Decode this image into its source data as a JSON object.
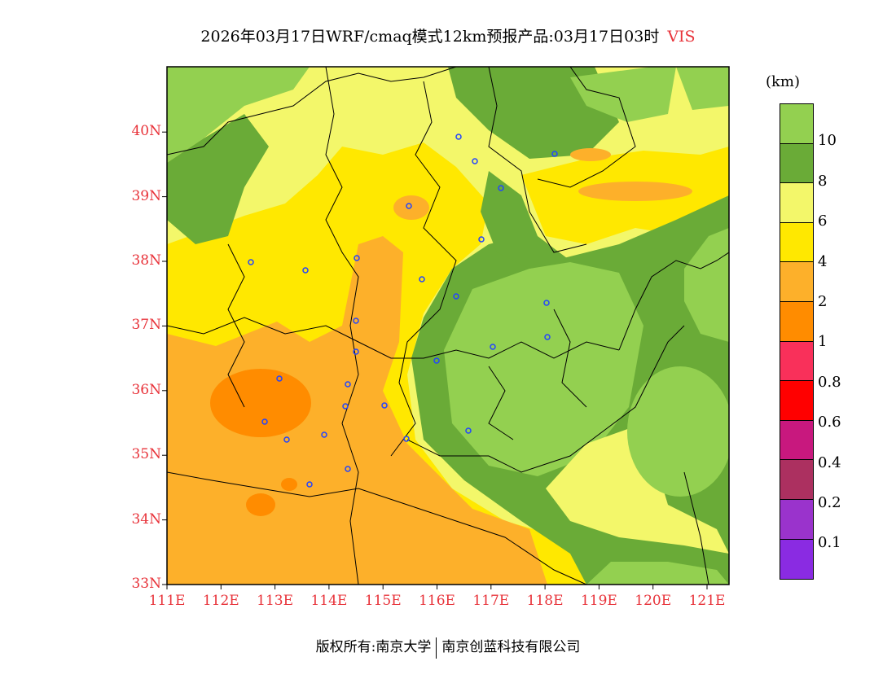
{
  "title": {
    "text": "2026年03月17日WRF/cmaq模式12km预报产品:03月17日03时",
    "variable": "VIS"
  },
  "axes": {
    "lat_labels": [
      "33N",
      "34N",
      "35N",
      "36N",
      "37N",
      "38N",
      "39N",
      "40N"
    ],
    "lon_labels": [
      "111E",
      "112E",
      "113E",
      "114E",
      "115E",
      "116E",
      "117E",
      "118E",
      "119E",
      "120E",
      "121E"
    ]
  },
  "colorbar": {
    "unit": "(km)",
    "labels": [
      "10",
      "8",
      "6",
      "4",
      "2",
      "1",
      "0.8",
      "0.6",
      "0.4",
      "0.2",
      "0.1"
    ],
    "colors": [
      "#93d050",
      "#6aab37",
      "#f3f76a",
      "#ffe800",
      "#fdb02a",
      "#ff8c00",
      "#f9305a",
      "#ff0000",
      "#c8187e",
      "#ac3060",
      "#9a33cc",
      "#8a2be2"
    ]
  },
  "footer": {
    "left": "版权所有:南京大学",
    "right": "南京创蓝科技有限公司"
  }
}
